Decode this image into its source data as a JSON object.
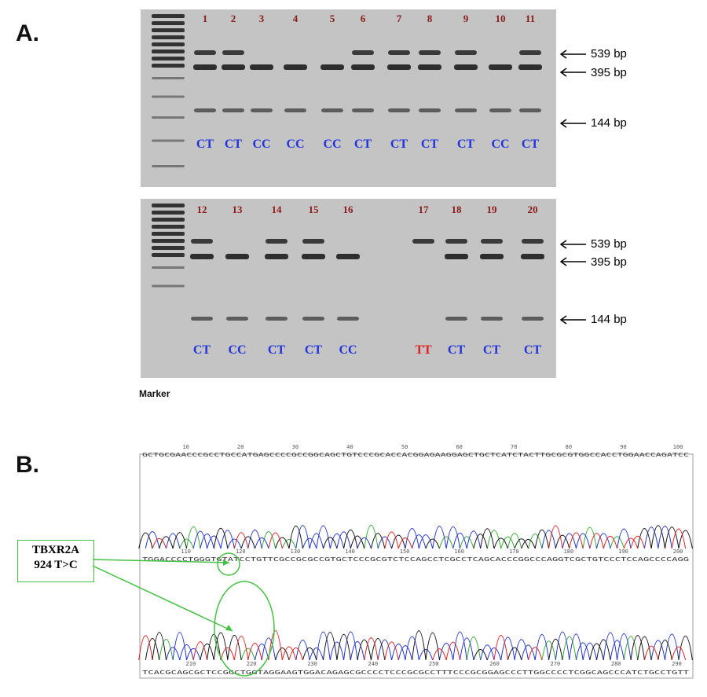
{
  "panel_a_label": "A.",
  "panel_b_label": "B.",
  "gel_top": {
    "lanes": [
      {
        "num": "1",
        "genotype": "CT"
      },
      {
        "num": "2",
        "genotype": "CT"
      },
      {
        "num": "3",
        "genotype": "CC"
      },
      {
        "num": "4",
        "genotype": "CC"
      },
      {
        "num": "5",
        "genotype": "CC"
      },
      {
        "num": "6",
        "genotype": "CT"
      },
      {
        "num": "7",
        "genotype": "CT"
      },
      {
        "num": "8",
        "genotype": "CT"
      },
      {
        "num": "9",
        "genotype": "CT"
      },
      {
        "num": "10",
        "genotype": "CC"
      },
      {
        "num": "11",
        "genotype": "CT"
      }
    ],
    "bands": [
      "539 bp",
      "395 bp",
      "144 bp"
    ]
  },
  "gel_bottom": {
    "lanes": [
      {
        "num": "12",
        "genotype": "CT"
      },
      {
        "num": "13",
        "genotype": "CC"
      },
      {
        "num": "14",
        "genotype": "CT"
      },
      {
        "num": "15",
        "genotype": "CT"
      },
      {
        "num": "16",
        "genotype": "CC"
      },
      {
        "num": "17",
        "genotype": "TT"
      },
      {
        "num": "18",
        "genotype": "CT"
      },
      {
        "num": "19",
        "genotype": "CT"
      },
      {
        "num": "20",
        "genotype": "CT"
      }
    ],
    "bands": [
      "539 bp",
      "395 bp",
      "144 bp"
    ]
  },
  "marker_label": "Marker",
  "callout": {
    "line1": "TBXR2A",
    "line2": "924 T>C"
  },
  "chromatogram": {
    "top_ticks": [
      "10",
      "20",
      "30",
      "40",
      "50",
      "60",
      "70",
      "80",
      "90",
      "100"
    ],
    "mid_ticks": [
      "110",
      "120",
      "130",
      "140",
      "150",
      "160",
      "170",
      "180",
      "190",
      "200"
    ],
    "bottom_ticks": [
      "210",
      "220",
      "230",
      "240",
      "250",
      "260",
      "270",
      "280",
      "290"
    ],
    "seq_top": "GCTGCGAACCCGCCTGCCATGAGCCCCGCCGGCAGCTGTCCCGCACCACGGAGAAGGAGCTGCTCATCTACTTGCGCGTGGCCACCTGGAACCAGATCC",
    "seq_mid": "TGGACCCCTGGGTGTATCCTGTTCGCCGCGCCGTGCTCCCGCGTCTCCAGCCTCGCCTCAGCACCCGGCCCAGGTCGCTGTCCCTCCAGCCCCAGG",
    "seq_bot": "TCACGCAGCGCTCCGGCTGGTAGGAAGTGGACAGAGCGCCCCTCCCGCGCCTTTCCCGCGGAGCCCTTGGCCCCTCGGCAGCCCATCTGCCTGTT",
    "colors": {
      "A": "#33aa33",
      "C": "#2233cc",
      "G": "#111111",
      "T": "#dd2222"
    }
  }
}
